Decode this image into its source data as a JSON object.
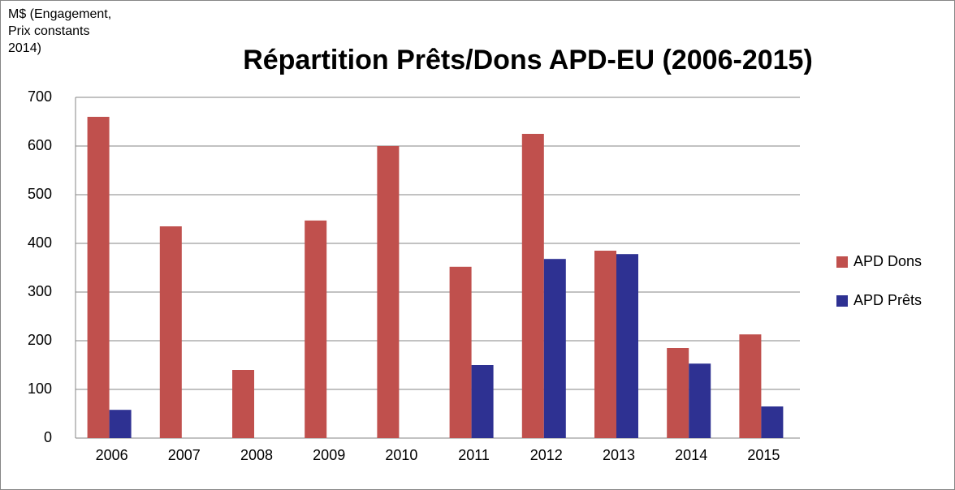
{
  "chart_data": {
    "type": "bar",
    "title": "Répartition Prêts/Dons APD-EU (2006-2015)",
    "y_label": [
      "M$ (Engagement,",
      "Prix constants",
      "2014)"
    ],
    "categories": [
      "2006",
      "2007",
      "2008",
      "2009",
      "2010",
      "2011",
      "2012",
      "2013",
      "2014",
      "2015"
    ],
    "series": [
      {
        "name": "APD Dons",
        "color": "#c0504d",
        "values": [
          660,
          435,
          140,
          447,
          600,
          352,
          625,
          385,
          185,
          213
        ]
      },
      {
        "name": "APD Prêts",
        "color": "#2e3192",
        "values": [
          58,
          0,
          0,
          0,
          0,
          150,
          368,
          378,
          153,
          65
        ]
      }
    ],
    "ylim": [
      0,
      700
    ],
    "yticks": [
      0,
      100,
      200,
      300,
      400,
      500,
      600,
      700
    ],
    "grid": true,
    "legend": "right"
  }
}
